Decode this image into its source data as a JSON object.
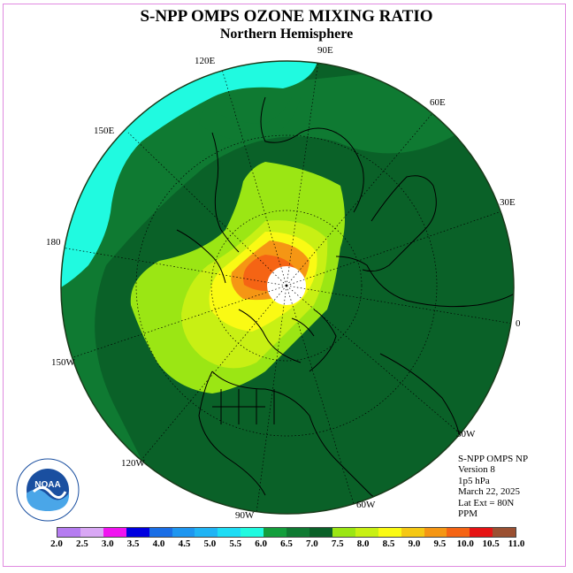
{
  "title": "S-NPP OMPS OZONE MIXING RATIO",
  "subtitle": "Northern Hemisphere",
  "longitude_labels": {
    "e90": "90E",
    "e60": "60E",
    "e30": "30E",
    "e120": "120E",
    "e150": "150E",
    "d180": "180",
    "zero": "0",
    "w150": "150W",
    "w120": "120W",
    "w90": "90W",
    "w60": "60W",
    "w30": "30W"
  },
  "info": {
    "product": "S-NPP OMPS NP",
    "version": "Version 8",
    "pressure": "1p5 hPa",
    "date": "March 22, 2025",
    "lat_ext": "Lat Ext = 80N",
    "units": "PPM"
  },
  "logo": {
    "text": "NOAA",
    "ring_text": "NATIONAL OCEANIC AND ATMOSPHERIC ADMINISTRATION · U.S. DEPARTMENT OF COMMERCE"
  },
  "colorbar": {
    "ticks": [
      "2.0",
      "2.5",
      "3.0",
      "3.5",
      "4.0",
      "4.5",
      "5.0",
      "5.5",
      "6.0",
      "6.5",
      "7.0",
      "7.5",
      "8.0",
      "8.5",
      "9.0",
      "9.5",
      "10.0",
      "10.5",
      "11.0"
    ],
    "colors": [
      "#b57cf0",
      "#d9a8f5",
      "#f014f0",
      "#0000e0",
      "#1a6ee6",
      "#1e96f0",
      "#20b4f5",
      "#1edcf5",
      "#20fae0",
      "#139e3c",
      "#0f7a32",
      "#0a6128",
      "#9be614",
      "#c8f014",
      "#fafa14",
      "#f5c814",
      "#f59614",
      "#f56414",
      "#e61414",
      "#9b5032"
    ]
  },
  "map_colors": {
    "ocean_dark": "#0a6128",
    "mid_green": "#0f7a32",
    "aqua": "#20fae0",
    "lime": "#9be614",
    "yellow_green": "#c8f014",
    "yellow": "#fafa14",
    "orange": "#f59614",
    "red_orange": "#f56414"
  }
}
